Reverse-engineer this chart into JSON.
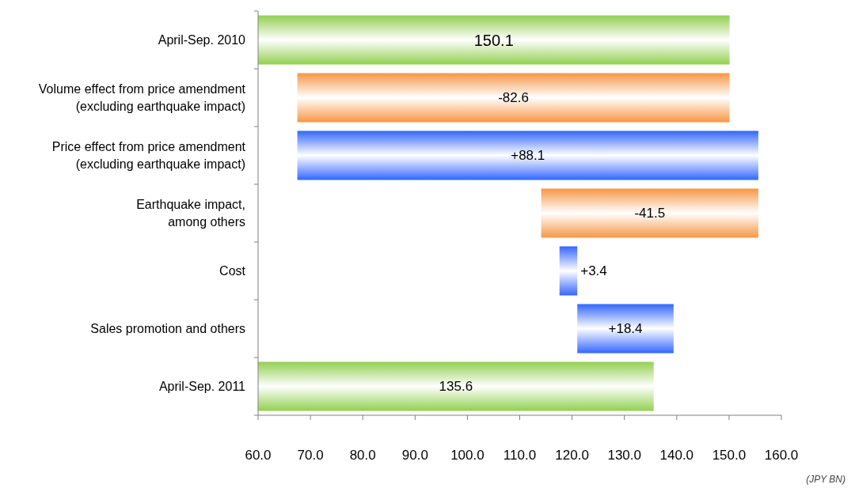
{
  "chart_data": {
    "type": "bar",
    "orientation": "horizontal",
    "categories": [
      "April-Sep. 2010",
      "Volume effect from price amendment\n(excluding earthquake impact)",
      "Price effect from price amendment\n(excluding earthquake impact)",
      "Earthquake impact,\namong others",
      "Cost",
      "Sales promotion and others",
      "April-Sep. 2011"
    ],
    "values": [
      90.1,
      -82.6,
      88.1,
      -41.5,
      3.4,
      18.4,
      75.6
    ],
    "base": [
      60,
      150.1,
      67.5,
      155.6,
      117.6,
      121.0,
      60
    ],
    "colors": [
      "#92d050",
      "#f79646",
      "#3366ff",
      "#f79646",
      "#3366ff",
      "#3366ff",
      "#92d050"
    ],
    "value_labels": [
      "150.1",
      "-82.6",
      "+88.1",
      "-41.5",
      "+3.4",
      "+18.4",
      "135.6"
    ],
    "xlim": [
      60,
      160
    ],
    "xticks": [
      {
        "value": 60,
        "label": "60.0"
      },
      {
        "value": 70,
        "label": "70.0"
      },
      {
        "value": 80,
        "label": "80.0"
      },
      {
        "value": 90,
        "label": "90.0"
      },
      {
        "value": 100,
        "label": "100.0"
      },
      {
        "value": 110,
        "label": "110.0"
      },
      {
        "value": 120,
        "label": "120.0"
      },
      {
        "value": 130,
        "label": "130.0"
      },
      {
        "value": 140,
        "label": "140.0"
      },
      {
        "value": 150,
        "label": "150.0"
      },
      {
        "value": 160,
        "label": "160.0"
      }
    ],
    "annotations": [
      "(JPY BN)"
    ]
  }
}
